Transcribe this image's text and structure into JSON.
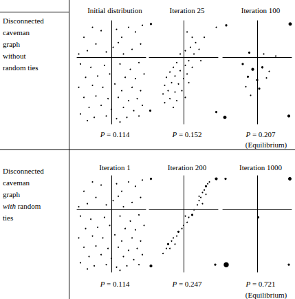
{
  "row_labels": [
    {
      "lines": [
        "Disconnected",
        "caveman",
        "graph",
        "without",
        "random ties"
      ]
    },
    {
      "lines": [
        "Disconnected",
        "caveman",
        "graph",
        [
          {
            "text": "with",
            "italic": true
          },
          {
            "text": " random"
          }
        ],
        "ties"
      ]
    }
  ],
  "chart_data": [
    {
      "type": "scatter",
      "title": "Initial distribution",
      "subtitle": "P = 0.114",
      "xlim": [
        -1,
        1
      ],
      "ylim": [
        -1,
        0.55
      ],
      "xticks": [],
      "yticks": [],
      "tick_labels": false,
      "grid": false,
      "marker": "circle",
      "color": "#000000",
      "points": [
        [
          -0.55,
          0.45,
          1
        ],
        [
          -0.3,
          0.4,
          1
        ],
        [
          0.15,
          0.42,
          1
        ],
        [
          0.5,
          0.45,
          1
        ],
        [
          0.7,
          0.38,
          1
        ],
        [
          -0.8,
          0.3,
          1
        ],
        [
          0.3,
          0.3,
          1
        ],
        [
          0.85,
          0.2,
          1
        ],
        [
          -0.45,
          0.2,
          1
        ],
        [
          0.05,
          0.15,
          1
        ],
        [
          0.6,
          0.12,
          1
        ],
        [
          -0.15,
          0.08,
          1
        ],
        [
          0.35,
          0.05,
          1
        ],
        [
          -0.7,
          0.1,
          1
        ],
        [
          0.9,
          0.48,
          1
        ],
        [
          -0.95,
          0.05,
          1
        ],
        [
          0.2,
          0.22,
          1
        ],
        [
          -0.9,
          -0.1,
          1
        ],
        [
          -0.6,
          -0.15,
          1
        ],
        [
          -0.2,
          -0.12,
          1
        ],
        [
          0.25,
          -0.1,
          1
        ],
        [
          0.55,
          -0.18,
          1
        ],
        [
          0.8,
          -0.08,
          1
        ],
        [
          -0.75,
          -0.3,
          1
        ],
        [
          -0.4,
          -0.28,
          1
        ],
        [
          -0.05,
          -0.25,
          1
        ],
        [
          0.4,
          -0.3,
          1
        ],
        [
          0.7,
          -0.32,
          1
        ],
        [
          0.95,
          -0.25,
          1
        ],
        [
          -0.95,
          -0.45,
          1
        ],
        [
          -0.55,
          -0.42,
          1
        ],
        [
          -0.25,
          -0.45,
          1
        ],
        [
          0.1,
          -0.4,
          1
        ],
        [
          0.3,
          -0.5,
          1
        ],
        [
          0.6,
          -0.45,
          1
        ],
        [
          0.85,
          -0.5,
          1
        ],
        [
          -0.8,
          -0.6,
          1
        ],
        [
          -0.45,
          -0.58,
          1
        ],
        [
          -0.1,
          -0.62,
          1
        ],
        [
          0.2,
          -0.6,
          1
        ],
        [
          0.5,
          -0.65,
          1
        ],
        [
          0.75,
          -0.62,
          1
        ],
        [
          -0.65,
          -0.75,
          1
        ],
        [
          -0.3,
          -0.72,
          1
        ],
        [
          0.0,
          -0.78,
          1
        ],
        [
          0.35,
          -0.75,
          1
        ],
        [
          0.65,
          -0.8,
          1
        ],
        [
          0.9,
          -0.72,
          1
        ],
        [
          -0.9,
          -0.85,
          1
        ],
        [
          -0.5,
          -0.9,
          1
        ],
        [
          -0.15,
          -0.88,
          1
        ],
        [
          0.15,
          -0.92,
          1
        ],
        [
          0.45,
          -0.9,
          1
        ],
        [
          0.8,
          -0.88,
          1
        ],
        [
          -0.7,
          -0.95,
          1
        ],
        [
          0.25,
          -0.97,
          1
        ]
      ]
    },
    {
      "type": "scatter",
      "title": "Iteration 25",
      "subtitle": "P = 0.152",
      "xlim": [
        -1,
        1
      ],
      "ylim": [
        -1,
        0.55
      ],
      "xticks": [],
      "yticks": [],
      "tick_labels": false,
      "grid": false,
      "marker": "circle",
      "color": "#000000",
      "points": [
        [
          -0.95,
          0.5,
          2
        ],
        [
          0.95,
          0.45,
          1
        ],
        [
          -0.97,
          -0.8,
          2
        ],
        [
          0.95,
          -0.82,
          2
        ],
        [
          0.1,
          0.38,
          1
        ],
        [
          0.25,
          0.3,
          1
        ],
        [
          0.35,
          0.22,
          1
        ],
        [
          0.2,
          0.15,
          1
        ],
        [
          0.05,
          0.1,
          1
        ],
        [
          0.3,
          0.05,
          1
        ],
        [
          -0.1,
          0.05,
          1
        ],
        [
          0.45,
          0.12,
          1
        ],
        [
          0.15,
          -0.05,
          1
        ],
        [
          -0.2,
          -0.08,
          1
        ],
        [
          0.05,
          -0.12,
          1
        ],
        [
          -0.3,
          -0.15,
          1
        ],
        [
          0.25,
          -0.15,
          1
        ],
        [
          -0.1,
          -0.2,
          1
        ],
        [
          -0.4,
          -0.22,
          1
        ],
        [
          0.1,
          -0.25,
          1
        ],
        [
          -0.25,
          -0.28,
          1
        ],
        [
          -0.5,
          -0.3,
          1
        ],
        [
          0.0,
          -0.32,
          1
        ],
        [
          -0.35,
          -0.38,
          1
        ],
        [
          -0.15,
          -0.4,
          1
        ],
        [
          -0.55,
          -0.42,
          1
        ],
        [
          0.15,
          -0.38,
          1
        ],
        [
          -0.45,
          -0.5,
          1
        ],
        [
          -0.25,
          -0.52,
          1
        ],
        [
          -0.6,
          -0.55,
          1
        ],
        [
          -0.05,
          -0.5,
          1
        ],
        [
          -0.4,
          -0.62,
          1
        ],
        [
          -0.2,
          -0.65,
          1
        ],
        [
          -0.55,
          -0.68,
          1
        ],
        [
          -0.3,
          -0.75,
          1
        ],
        [
          0.05,
          -0.6,
          1
        ],
        [
          0.6,
          0.3,
          1
        ],
        [
          0.5,
          -0.05,
          1
        ]
      ]
    },
    {
      "type": "scatter",
      "title": "Iteration 100",
      "subtitle": "P = 0.207",
      "annotations": [
        "(Equilibrium)"
      ],
      "xlim": [
        -1,
        1
      ],
      "ylim": [
        -1,
        0.55
      ],
      "xticks": [],
      "yticks": [],
      "tick_labels": false,
      "grid": false,
      "marker": "circle",
      "color": "#000000",
      "points": [
        [
          -0.9,
          0.48,
          2
        ],
        [
          0.96,
          0.5,
          4
        ],
        [
          -0.94,
          -0.9,
          4
        ],
        [
          0.92,
          -0.88,
          3
        ],
        [
          -0.23,
          0.07,
          2
        ],
        [
          0.19,
          0.05,
          1
        ],
        [
          0.54,
          0.02,
          1
        ],
        [
          -0.42,
          -0.1,
          2
        ],
        [
          -0.13,
          -0.18,
          3
        ],
        [
          0.15,
          -0.15,
          2
        ],
        [
          0.35,
          -0.21,
          1
        ],
        [
          -0.27,
          -0.29,
          2
        ],
        [
          0.0,
          -0.34,
          2
        ],
        [
          0.27,
          -0.31,
          1
        ],
        [
          -0.33,
          -0.44,
          1
        ],
        [
          0.06,
          -0.47,
          2
        ],
        [
          -0.19,
          -0.57,
          1
        ]
      ]
    },
    {
      "type": "scatter",
      "title": "Iteration 1",
      "subtitle": "P = 0.114",
      "xlim": [
        -1,
        1
      ],
      "ylim": [
        -1,
        0.55
      ],
      "xticks": [],
      "yticks": [],
      "tick_labels": false,
      "grid": false,
      "marker": "circle",
      "color": "#000000",
      "points": [
        [
          -0.55,
          0.45,
          1
        ],
        [
          -0.3,
          0.4,
          1
        ],
        [
          0.15,
          0.42,
          1
        ],
        [
          0.5,
          0.45,
          1
        ],
        [
          0.7,
          0.38,
          1
        ],
        [
          -0.8,
          0.3,
          1
        ],
        [
          0.3,
          0.3,
          1
        ],
        [
          0.85,
          0.2,
          1
        ],
        [
          -0.45,
          0.2,
          1
        ],
        [
          0.05,
          0.15,
          1
        ],
        [
          0.6,
          0.12,
          1
        ],
        [
          -0.15,
          0.08,
          1
        ],
        [
          0.35,
          0.05,
          1
        ],
        [
          -0.7,
          0.1,
          1
        ],
        [
          0.9,
          0.48,
          1
        ],
        [
          -0.95,
          0.05,
          1
        ],
        [
          0.2,
          0.22,
          1
        ],
        [
          -0.9,
          -0.1,
          1
        ],
        [
          -0.6,
          -0.15,
          1
        ],
        [
          -0.2,
          -0.12,
          1
        ],
        [
          0.25,
          -0.1,
          1
        ],
        [
          0.55,
          -0.18,
          1
        ],
        [
          0.8,
          -0.08,
          1
        ],
        [
          -0.75,
          -0.3,
          1
        ],
        [
          -0.4,
          -0.28,
          1
        ],
        [
          -0.05,
          -0.25,
          1
        ],
        [
          0.4,
          -0.3,
          1
        ],
        [
          0.7,
          -0.32,
          1
        ],
        [
          0.95,
          -0.25,
          1
        ],
        [
          -0.95,
          -0.45,
          1
        ],
        [
          -0.55,
          -0.42,
          1
        ],
        [
          -0.25,
          -0.45,
          1
        ],
        [
          0.1,
          -0.4,
          1
        ],
        [
          0.3,
          -0.5,
          1
        ],
        [
          0.6,
          -0.45,
          1
        ],
        [
          0.85,
          -0.5,
          1
        ],
        [
          -0.8,
          -0.6,
          1
        ],
        [
          -0.45,
          -0.58,
          1
        ],
        [
          -0.1,
          -0.62,
          1
        ],
        [
          0.2,
          -0.6,
          1
        ],
        [
          0.5,
          -0.65,
          1
        ],
        [
          0.75,
          -0.62,
          1
        ],
        [
          -0.65,
          -0.75,
          1
        ],
        [
          -0.3,
          -0.72,
          1
        ],
        [
          0.0,
          -0.78,
          1
        ],
        [
          0.35,
          -0.75,
          1
        ],
        [
          0.65,
          -0.8,
          1
        ],
        [
          0.9,
          -0.72,
          1
        ],
        [
          -0.9,
          -0.85,
          1
        ],
        [
          -0.5,
          -0.9,
          1
        ],
        [
          -0.15,
          -0.88,
          1
        ],
        [
          0.15,
          -0.92,
          1
        ],
        [
          0.45,
          -0.9,
          1
        ],
        [
          0.8,
          -0.88,
          1
        ],
        [
          -0.7,
          -0.95,
          1
        ],
        [
          0.25,
          -0.97,
          1
        ]
      ]
    },
    {
      "type": "scatter",
      "title": "Iteration 200",
      "subtitle": "P = 0.247",
      "xlim": [
        -1,
        1
      ],
      "ylim": [
        -1,
        0.55
      ],
      "xticks": [],
      "yticks": [],
      "tick_labels": false,
      "grid": false,
      "marker": "circle",
      "color": "#000000",
      "points": [
        [
          -0.95,
          0.5,
          2
        ],
        [
          0.95,
          0.5,
          3
        ],
        [
          -0.95,
          -0.9,
          3
        ],
        [
          0.92,
          -0.88,
          2
        ],
        [
          -0.6,
          -0.7,
          1
        ],
        [
          -0.5,
          -0.62,
          1
        ],
        [
          -0.45,
          -0.55,
          2
        ],
        [
          -0.35,
          -0.5,
          1
        ],
        [
          -0.3,
          -0.45,
          1
        ],
        [
          -0.2,
          -0.42,
          1
        ],
        [
          -0.15,
          -0.35,
          2
        ],
        [
          -0.05,
          -0.3,
          1
        ],
        [
          0.0,
          -0.25,
          1
        ],
        [
          0.1,
          -0.2,
          1
        ],
        [
          0.15,
          -0.12,
          1
        ],
        [
          0.25,
          -0.08,
          2
        ],
        [
          0.3,
          0.0,
          1
        ],
        [
          0.4,
          0.08,
          1
        ],
        [
          0.45,
          0.15,
          1
        ],
        [
          0.5,
          0.2,
          1
        ],
        [
          0.55,
          0.28,
          1
        ],
        [
          0.6,
          0.32,
          1
        ],
        [
          0.65,
          0.38,
          2
        ],
        [
          0.7,
          0.42,
          1
        ],
        [
          0.75,
          0.45,
          1
        ],
        [
          0.55,
          0.1,
          1
        ],
        [
          0.45,
          0.22,
          1
        ],
        [
          -0.4,
          -0.62,
          1
        ],
        [
          -0.25,
          -0.55,
          1
        ],
        [
          0.05,
          -0.1,
          1
        ],
        [
          0.65,
          0.25,
          1
        ]
      ]
    },
    {
      "type": "scatter",
      "title": "Iteration 1000",
      "subtitle": "P = 0.721",
      "annotations": [
        "(Equilibrium)"
      ],
      "xlim": [
        -1,
        1
      ],
      "ylim": [
        -1,
        0.55
      ],
      "xticks": [],
      "yticks": [],
      "tick_labels": false,
      "grid": false,
      "marker": "circle",
      "color": "#000000",
      "points": [
        [
          -0.92,
          0.5,
          2
        ],
        [
          0.95,
          0.5,
          4
        ],
        [
          0.03,
          -0.12,
          2
        ],
        [
          -0.9,
          -0.88,
          8
        ],
        [
          0.92,
          -0.88,
          2
        ]
      ]
    }
  ]
}
